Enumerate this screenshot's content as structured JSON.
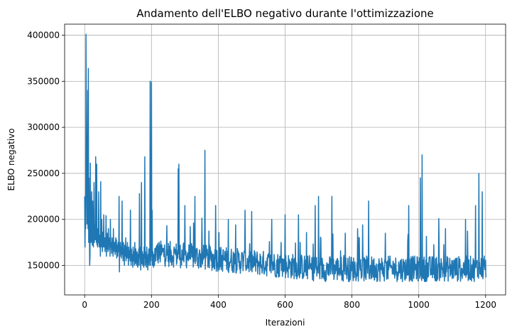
{
  "chart_data": {
    "type": "line",
    "title": "Andamento dell'ELBO negativo durante l'ottimizzazione",
    "xlabel": "Iterazioni",
    "ylabel": "ELBO negativo",
    "xlim": [
      -60,
      1260
    ],
    "ylim": [
      118000,
      412000
    ],
    "x_ticks": [
      0,
      200,
      400,
      600,
      800,
      1000,
      1200
    ],
    "y_ticks": [
      150000,
      200000,
      250000,
      300000,
      350000,
      400000
    ],
    "grid": true,
    "color": "#1f77b4",
    "series": [
      {
        "name": "",
        "x_start": 0,
        "x_step": 1,
        "values": [
          225000,
          170000,
          210000,
          190000,
          401000,
          300000,
          240000,
          195000,
          260000,
          340000,
          190000,
          364000,
          175000,
          245000,
          200000,
          150000,
          160000,
          261000,
          180000,
          175000,
          180000,
          230000,
          178000,
          172000,
          220000,
          188000,
          170000,
          180000,
          240000,
          175000,
          195000,
          181000,
          178000,
          268000,
          186000,
          175000,
          260000,
          172000,
          182000,
          170000,
          190000,
          175000,
          230000,
          176000,
          170000,
          178000,
          183000,
          160000,
          241000,
          170000,
          174000,
          200000,
          178000,
          165000,
          186000,
          175000,
          170000,
          205000,
          175000,
          170000,
          180000,
          165000,
          172000,
          178000,
          204000,
          160000,
          175000,
          168000,
          185000,
          170000,
          165000,
          190000,
          172000,
          178000,
          167000,
          180000,
          160000,
          200000,
          170000,
          175000,
          168000,
          163000,
          180000,
          170000,
          175000,
          160000,
          190000,
          165000,
          172000,
          168000,
          175000,
          162000,
          170000,
          180000,
          165000,
          178000,
          158000,
          172000,
          168000,
          160000,
          175000,
          170000,
          165000,
          225000,
          143000,
          170000,
          160000,
          175000,
          165000,
          170000,
          158000,
          168000,
          220000,
          162000,
          170000,
          155000,
          175000,
          160000,
          168000,
          150000,
          172000,
          165000,
          160000,
          180000,
          155000,
          170000,
          162000,
          158000,
          175000,
          160000,
          165000,
          150000,
          170000,
          158000,
          162000,
          166000,
          155000,
          210000,
          160000,
          150000,
          168000,
          155000,
          162000,
          158000,
          148000,
          170000,
          160000,
          155000,
          165000,
          150000,
          175000,
          158000,
          152000,
          168000,
          160000,
          155000,
          150000,
          165000,
          158000,
          148000,
          162000,
          155000,
          168000,
          150000,
          228000,
          158000,
          170000,
          155000,
          145000,
          160000,
          240000,
          152000,
          158000,
          165000,
          150000,
          162000,
          155000,
          148000,
          170000,
          158000,
          268000,
          150000,
          165000,
          155000,
          160000,
          148000,
          170000,
          152000,
          158000,
          145000,
          162000,
          155000,
          168000,
          150000,
          160000,
          158000,
          350000,
          150000,
          235000,
          155000,
          349000,
          160000,
          210000,
          150000,
          165000,
          158000,
          148000,
          162000,
          155000,
          150000
        ]
      }
    ]
  }
}
